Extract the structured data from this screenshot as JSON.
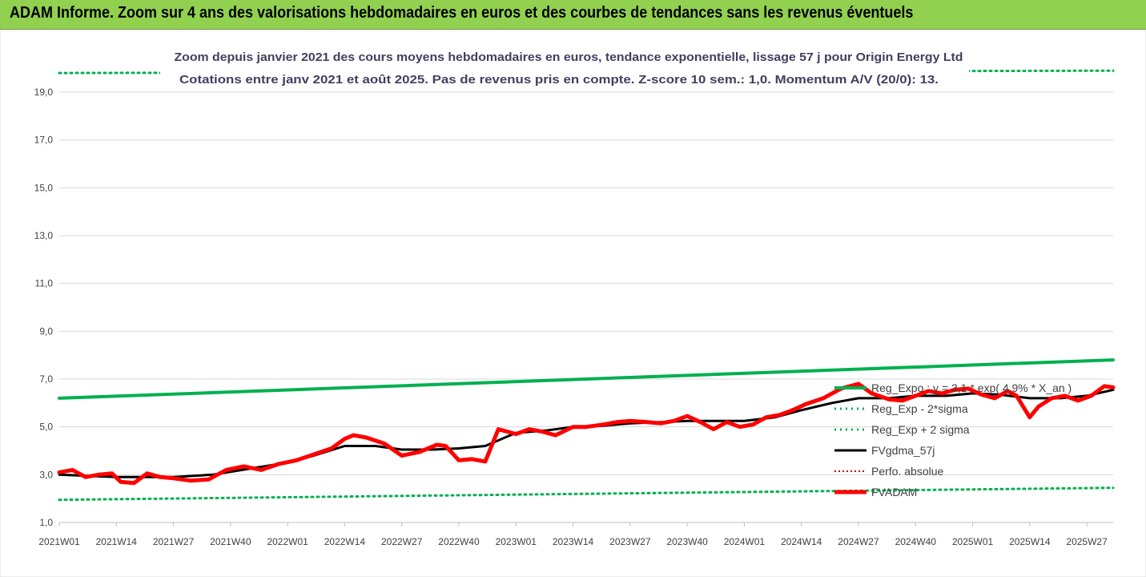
{
  "header": {
    "title": "ADAM Informe. Zoom sur 4 ans des valorisations hebdomadaires en euros et des courbes de tendances sans les revenus éventuels"
  },
  "chart_data": {
    "type": "line",
    "title": "Zoom depuis janvier 2021 des cours moyens hebdomadaires en euros, tendance exponentielle, lissage 57 j pour Origin Energy Ltd",
    "subtitle": "Cotations entre janv 2021 et août 2025. Pas de revenus pris en compte. Z-score 10 sem.: 1,0. Momentum A/V (20/0): 13.",
    "xlabel": "",
    "ylabel": "",
    "ylim": [
      1,
      19
    ],
    "yticks": [
      "1,0",
      "3,0",
      "5,0",
      "7,0",
      "9,0",
      "11,0",
      "13,0",
      "15,0",
      "17,0",
      "19,0"
    ],
    "ytick_values": [
      1,
      3,
      5,
      7,
      9,
      11,
      13,
      15,
      17,
      19
    ],
    "xticks": [
      "2021W01",
      "2021W14",
      "2021W27",
      "2021W40",
      "2022W01",
      "2022W14",
      "2022W27",
      "2022W40",
      "2023W01",
      "2023W14",
      "2023W27",
      "2023W40",
      "2024W01",
      "2024W14",
      "2024W27",
      "2024W40",
      "2025W01",
      "2025W14",
      "2025W27"
    ],
    "xtick_index": [
      0,
      13,
      26,
      39,
      52,
      65,
      78,
      91,
      104,
      117,
      130,
      143,
      156,
      169,
      182,
      195,
      208,
      221,
      234
    ],
    "week_count": 241,
    "grid": true,
    "legend_position": "right",
    "colors": {
      "reg_expo": "#00b050",
      "sigma": "#00b050",
      "fvgdma": "#000000",
      "perfo": "#c00000",
      "fvadam": "#ff0000"
    },
    "series": [
      {
        "name": "Reg_Expo : y = 3,1 * exp( 4,9% * X_an )",
        "style": "solid-green",
        "x": [
          0,
          240
        ],
        "y": [
          6.2,
          7.8
        ]
      },
      {
        "name": "Reg_Exp - 2*sigma",
        "style": "dotted-green",
        "x": [
          0,
          240
        ],
        "y": [
          1.95,
          2.45
        ]
      },
      {
        "name": "Reg_Exp + 2 sigma",
        "style": "dotted-green",
        "x": [
          0,
          240
        ],
        "y": [
          19.8,
          19.9
        ]
      },
      {
        "name": "FVgdma_57j",
        "style": "solid-black",
        "x": [
          0,
          13,
          26,
          35,
          45,
          52,
          58,
          65,
          72,
          78,
          85,
          91,
          97,
          104,
          111,
          117,
          124,
          130,
          137,
          143,
          150,
          156,
          163,
          169,
          176,
          182,
          189,
          195,
          202,
          208,
          214,
          221,
          228,
          234,
          240
        ],
        "y": [
          3.0,
          2.9,
          2.9,
          3.0,
          3.3,
          3.5,
          3.8,
          4.2,
          4.2,
          4.05,
          4.05,
          4.1,
          4.2,
          4.75,
          4.85,
          5.0,
          5.05,
          5.15,
          5.2,
          5.25,
          5.25,
          5.25,
          5.4,
          5.7,
          6.0,
          6.2,
          6.2,
          6.3,
          6.3,
          6.4,
          6.35,
          6.2,
          6.2,
          6.3,
          6.55
        ]
      },
      {
        "name": "Perfo. absolue",
        "style": "dotted-red",
        "x": [],
        "y": []
      },
      {
        "name": "FVADAM",
        "style": "thick-red",
        "x": [
          0,
          3,
          6,
          9,
          12,
          14,
          17,
          20,
          23,
          26,
          30,
          34,
          38,
          42,
          46,
          50,
          54,
          58,
          62,
          65,
          67,
          70,
          74,
          78,
          82,
          86,
          88,
          91,
          94,
          97,
          100,
          104,
          107,
          110,
          113,
          117,
          120,
          124,
          127,
          130,
          134,
          137,
          140,
          143,
          146,
          149,
          152,
          155,
          158,
          161,
          164,
          167,
          170,
          174,
          178,
          182,
          185,
          189,
          192,
          195,
          198,
          201,
          204,
          207,
          210,
          213,
          216,
          218,
          221,
          223,
          226,
          229,
          232,
          235,
          238,
          240
        ],
        "y": [
          3.1,
          3.2,
          2.9,
          3.0,
          3.05,
          2.7,
          2.65,
          3.05,
          2.9,
          2.85,
          2.75,
          2.8,
          3.2,
          3.35,
          3.2,
          3.45,
          3.6,
          3.85,
          4.1,
          4.5,
          4.65,
          4.55,
          4.3,
          3.8,
          3.95,
          4.25,
          4.2,
          3.6,
          3.65,
          3.55,
          4.9,
          4.7,
          4.9,
          4.8,
          4.65,
          5.0,
          5.0,
          5.1,
          5.2,
          5.25,
          5.2,
          5.15,
          5.25,
          5.45,
          5.2,
          4.9,
          5.2,
          5.0,
          5.1,
          5.4,
          5.5,
          5.7,
          5.95,
          6.2,
          6.6,
          6.8,
          6.4,
          6.15,
          6.1,
          6.3,
          6.5,
          6.4,
          6.55,
          6.6,
          6.35,
          6.2,
          6.5,
          6.3,
          5.4,
          5.85,
          6.2,
          6.3,
          6.1,
          6.3,
          6.7,
          6.65
        ]
      }
    ]
  }
}
